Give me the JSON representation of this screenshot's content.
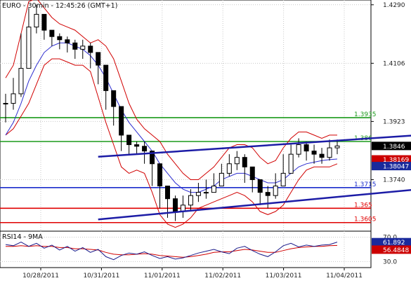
{
  "colors": {
    "background": "#ffffff",
    "frame": "#000000",
    "grid": "#c8c8c8",
    "candles": "#000000",
    "bollinger": "#d10000",
    "moving_average": "#2c2ccf",
    "green_level": "#1a9a1a",
    "blue_level": "#1a2ccc",
    "red_level": "#e00000",
    "channel": "#1c1ca6",
    "arrow": "#1c1ca6",
    "price_box_last": "#000000",
    "price_box_red": "#cc0000",
    "price_box_blue": "#1a2a9c",
    "rsi_line": "#1a1a8a",
    "rsi_ma": "#d10000"
  },
  "chart_data": [
    {
      "type": "candlestick",
      "title": "EURO - 30min - 12:45:26 (GMT+1)",
      "x_tick_labels": [
        "10/28/2011",
        "10/31/2011",
        "11/01/2011",
        "11/02/2011",
        "11/03/2011",
        "11/04/2011"
      ],
      "y_tick_labels": [
        "1.4290",
        "1.4106",
        "1.3923",
        "1.3740"
      ],
      "ylim": [
        1.3578,
        1.4305
      ],
      "grid": true,
      "levels": [
        {
          "label": "1.3935",
          "value": 1.3935,
          "color": "green"
        },
        {
          "label": "1.386",
          "value": 1.386,
          "color": "green"
        },
        {
          "label": "1.3715",
          "value": 1.3715,
          "color": "blue"
        },
        {
          "label": "1.365",
          "value": 1.365,
          "color": "red"
        },
        {
          "label": "1.3605",
          "value": 1.3605,
          "color": "red"
        }
      ],
      "price_boxes": [
        {
          "label": "1.3846",
          "value": 1.3846,
          "style": "last"
        },
        {
          "label": "1.38169",
          "value": 1.38169,
          "style": "red"
        },
        {
          "label": "1.38047",
          "value": 1.38047,
          "style": "blue"
        }
      ],
      "trend_channel": {
        "upper": {
          "from": [
            12,
            1.3812
          ],
          "to": [
            62,
            1.3894
          ]
        },
        "lower": {
          "from": [
            12,
            1.3615
          ],
          "to": [
            62,
            1.3729
          ]
        }
      },
      "arrow": {
        "from": [
          62,
          1.384
        ],
        "to": [
          66,
          1.3897
        ]
      },
      "series": [
        {
          "name": "price",
          "close": [
            1.398,
            1.401,
            1.409,
            1.422,
            1.426,
            1.421,
            1.419,
            1.418,
            1.417,
            1.415,
            1.416,
            1.414,
            1.41,
            1.402,
            1.397,
            1.388,
            1.385,
            1.3845,
            1.383,
            1.379,
            1.372,
            1.368,
            1.364,
            1.366,
            1.369,
            1.37,
            1.37,
            1.372,
            1.376,
            1.379,
            1.381,
            1.378,
            1.374,
            1.37,
            1.369,
            1.372,
            1.376,
            1.382,
            1.385,
            1.383,
            1.382,
            1.381,
            1.384,
            1.3846
          ],
          "high": [
            1.401,
            1.406,
            1.42,
            1.428,
            1.429,
            1.424,
            1.421,
            1.42,
            1.419,
            1.418,
            1.418,
            1.417,
            1.413,
            1.406,
            1.4,
            1.392,
            1.387,
            1.386,
            1.386,
            1.382,
            1.376,
            1.372,
            1.369,
            1.369,
            1.371,
            1.373,
            1.374,
            1.376,
            1.379,
            1.382,
            1.383,
            1.382,
            1.378,
            1.374,
            1.372,
            1.376,
            1.382,
            1.385,
            1.387,
            1.386,
            1.385,
            1.384,
            1.3866,
            1.3866
          ],
          "low": [
            1.392,
            1.396,
            1.4,
            1.415,
            1.42,
            1.418,
            1.416,
            1.415,
            1.414,
            1.412,
            1.412,
            1.409,
            1.404,
            1.396,
            1.391,
            1.383,
            1.382,
            1.382,
            1.379,
            1.372,
            1.365,
            1.362,
            1.361,
            1.362,
            1.364,
            1.367,
            1.368,
            1.37,
            1.372,
            1.375,
            1.377,
            1.373,
            1.37,
            1.366,
            1.365,
            1.368,
            1.372,
            1.378,
            1.381,
            1.38,
            1.379,
            1.379,
            1.38,
            1.382
          ]
        }
      ],
      "bollinger_upper": [
        1.406,
        1.41,
        1.42,
        1.43,
        1.431,
        1.428,
        1.425,
        1.423,
        1.422,
        1.421,
        1.419,
        1.417,
        1.418,
        1.416,
        1.412,
        1.405,
        1.398,
        1.393,
        1.39,
        1.388,
        1.386,
        1.382,
        1.379,
        1.376,
        1.374,
        1.374,
        1.376,
        1.378,
        1.381,
        1.384,
        1.385,
        1.385,
        1.384,
        1.381,
        1.379,
        1.38,
        1.384,
        1.387,
        1.389,
        1.389,
        1.388,
        1.387,
        1.388,
        1.388
      ],
      "bollinger_lower": [
        1.388,
        1.39,
        1.394,
        1.398,
        1.404,
        1.41,
        1.412,
        1.412,
        1.411,
        1.41,
        1.41,
        1.408,
        1.4,
        1.392,
        1.385,
        1.378,
        1.376,
        1.377,
        1.376,
        1.37,
        1.363,
        1.36,
        1.359,
        1.36,
        1.362,
        1.365,
        1.366,
        1.367,
        1.368,
        1.369,
        1.37,
        1.369,
        1.367,
        1.364,
        1.363,
        1.364,
        1.366,
        1.37,
        1.374,
        1.377,
        1.378,
        1.378,
        1.378,
        1.379
      ],
      "moving_average": [
        1.388,
        1.392,
        1.398,
        1.405,
        1.41,
        1.414,
        1.416,
        1.417,
        1.417,
        1.416,
        1.415,
        1.413,
        1.41,
        1.406,
        1.401,
        1.396,
        1.392,
        1.389,
        1.386,
        1.383,
        1.379,
        1.376,
        1.373,
        1.371,
        1.37,
        1.37,
        1.371,
        1.372,
        1.374,
        1.375,
        1.376,
        1.376,
        1.375,
        1.374,
        1.373,
        1.373,
        1.374,
        1.376,
        1.378,
        1.379,
        1.3795,
        1.38,
        1.3803,
        1.3805
      ]
    },
    {
      "type": "line",
      "title": "RSI14 - 9MA",
      "y_tick_labels": [
        "70.0",
        "30.0"
      ],
      "ylim": [
        20,
        80
      ],
      "price_boxes": [
        {
          "label": "61.892",
          "value": 61.892,
          "style": "blue"
        },
        {
          "label": "56.4848",
          "value": 56.4848,
          "style": "red"
        }
      ],
      "series": [
        {
          "name": "RSI14",
          "values": [
            58,
            56,
            62,
            55,
            60,
            52,
            57,
            49,
            55,
            47,
            53,
            45,
            50,
            38,
            33,
            40,
            44,
            42,
            46,
            40,
            35,
            38,
            34,
            36,
            40,
            44,
            47,
            50,
            46,
            43,
            52,
            55,
            48,
            42,
            38,
            46,
            56,
            60,
            54,
            57,
            55,
            57,
            58,
            62
          ]
        },
        {
          "name": "9MA",
          "values": [
            55,
            55,
            56,
            55,
            56,
            55,
            55,
            53,
            53,
            51,
            51,
            50,
            49,
            45,
            42,
            41,
            41,
            42,
            43,
            42,
            40,
            39,
            38,
            37,
            38,
            40,
            42,
            45,
            46,
            46,
            48,
            50,
            49,
            47,
            45,
            45,
            48,
            51,
            53,
            54,
            55,
            55,
            56,
            56.5
          ]
        }
      ]
    }
  ]
}
